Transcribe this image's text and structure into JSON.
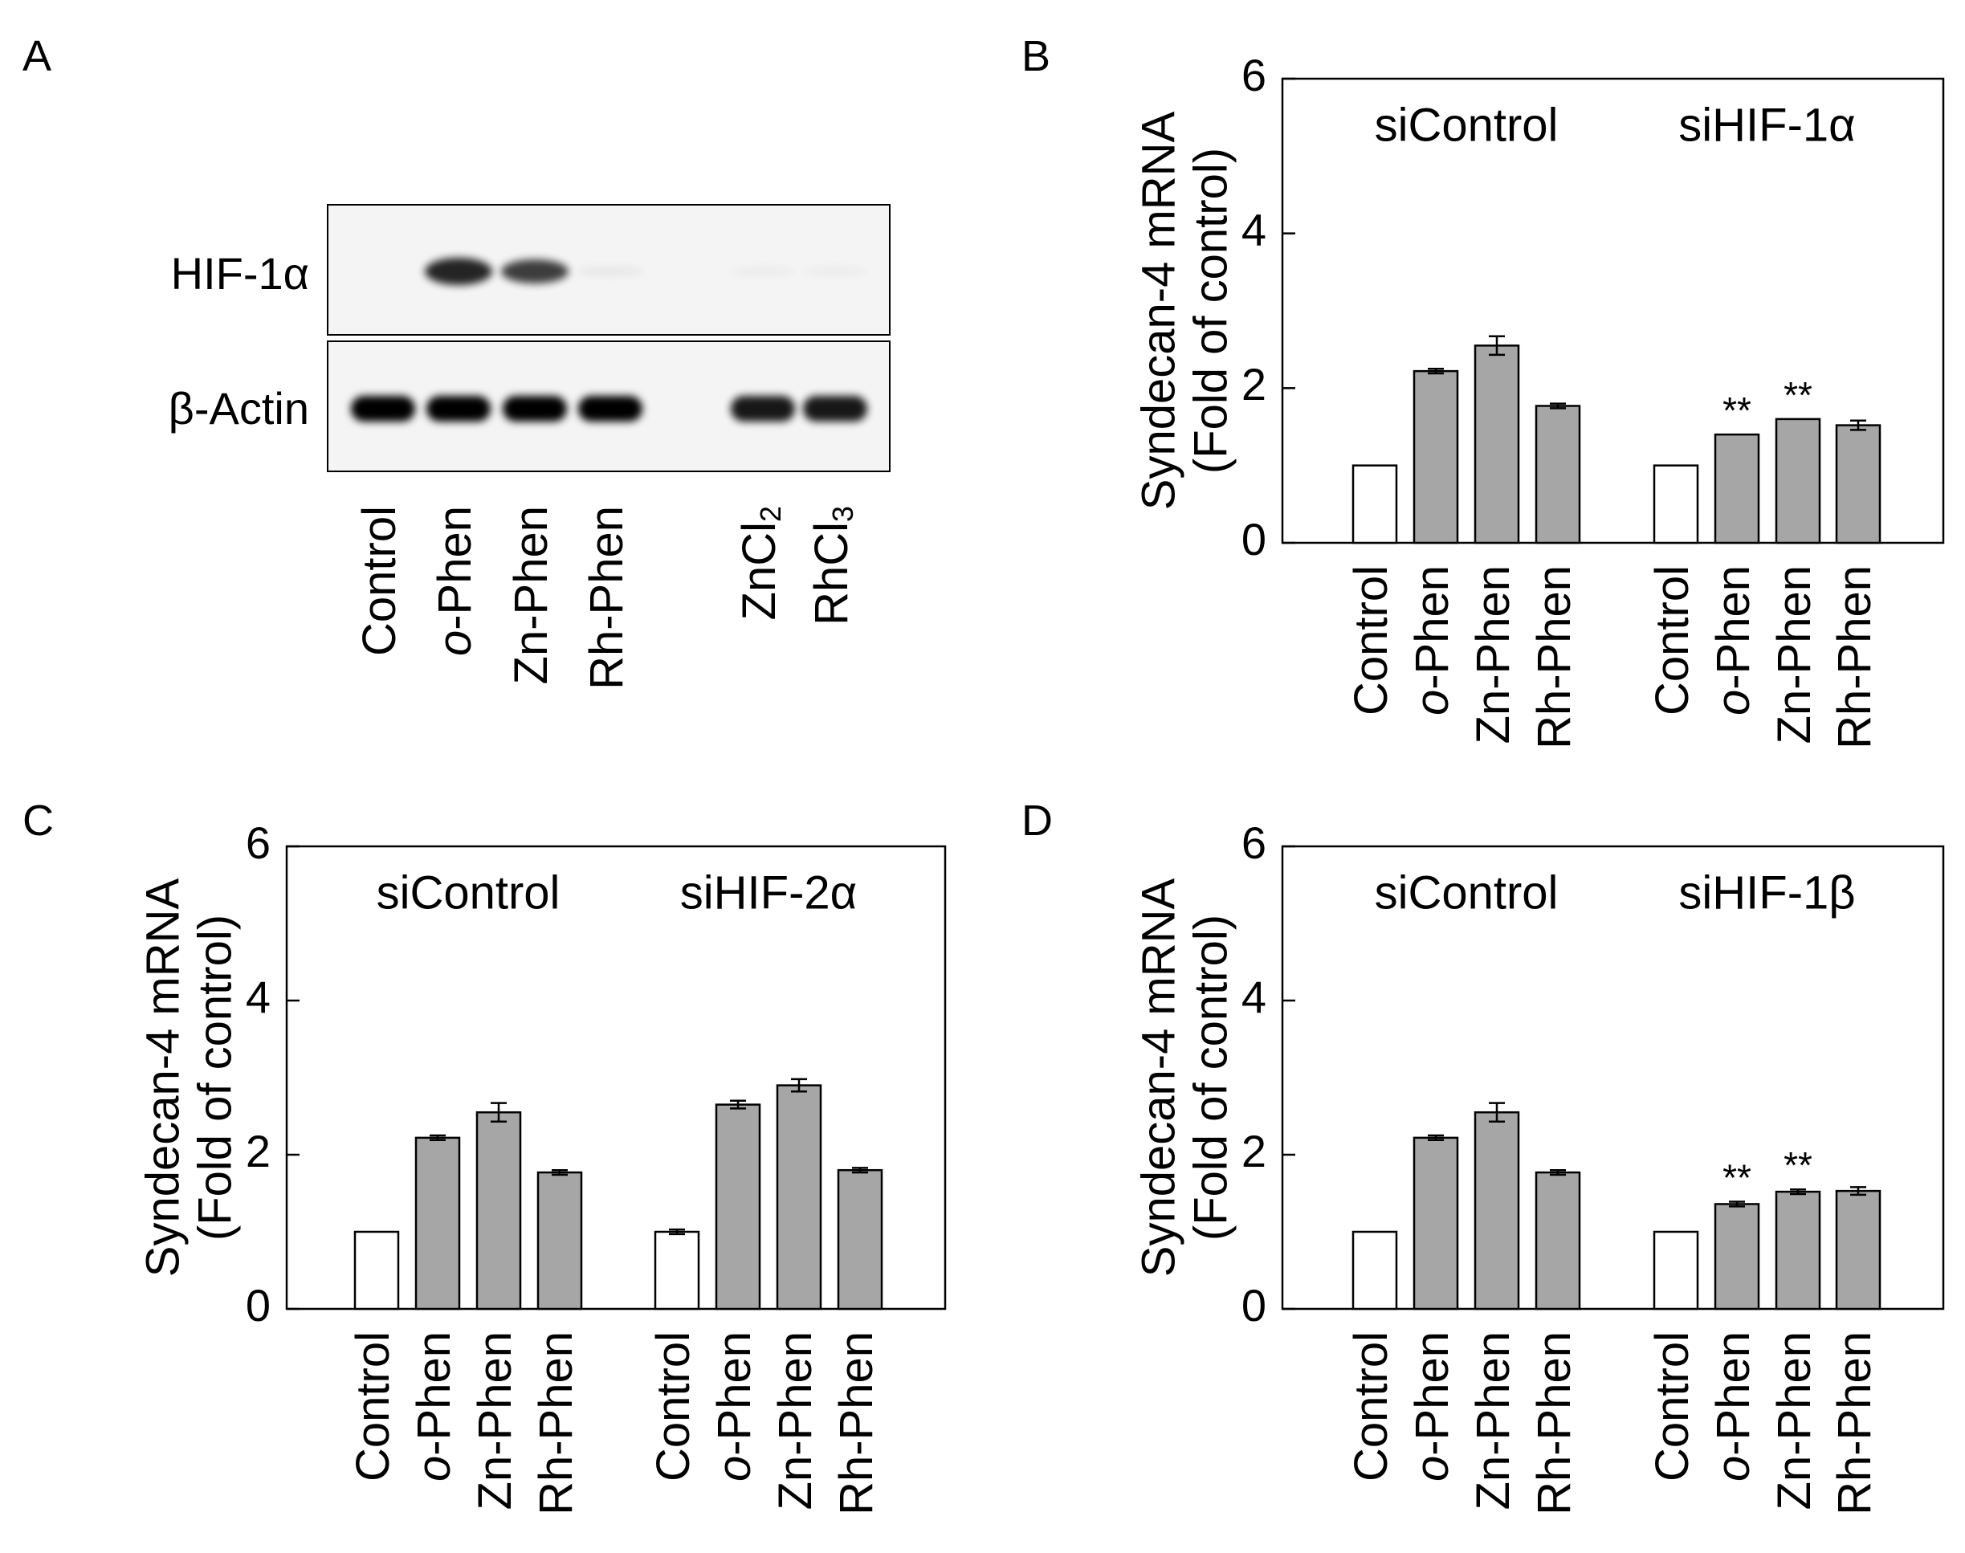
{
  "panels": {
    "A": {
      "letter": "A"
    },
    "B": {
      "letter": "B"
    },
    "C": {
      "letter": "C"
    },
    "D": {
      "letter": "D"
    }
  },
  "blot": {
    "rows": [
      {
        "label": "HIF-1α"
      },
      {
        "label": "β-Actin"
      }
    ],
    "lanes": [
      {
        "label": "Control",
        "italic_prefix": "",
        "sub": "",
        "hif_band": 0.0,
        "actin_band": 1.0
      },
      {
        "label": "-Phen",
        "italic_prefix": "o",
        "sub": "",
        "hif_band": 0.85,
        "actin_band": 1.0
      },
      {
        "label": "Zn-Phen",
        "italic_prefix": "",
        "sub": "",
        "hif_band": 0.75,
        "actin_band": 1.0
      },
      {
        "label": "Rh-Phen",
        "italic_prefix": "",
        "sub": "",
        "hif_band": 0.05,
        "actin_band": 1.0
      },
      {
        "label": "",
        "italic_prefix": "",
        "sub": "",
        "hif_band": 0.0,
        "actin_band": 0.0
      },
      {
        "label": "ZnCl",
        "italic_prefix": "",
        "sub": "2",
        "hif_band": 0.03,
        "actin_band": 0.9
      },
      {
        "label": "RhCl",
        "italic_prefix": "",
        "sub": "3",
        "hif_band": 0.03,
        "actin_band": 0.9
      }
    ]
  },
  "colors": {
    "treated_bar": "#a6a6a6",
    "control_bar": "#ffffff",
    "outline": "#000000"
  },
  "chart_data": [
    {
      "panel": "B",
      "type": "bar",
      "ylabel_line1": "Syndecan-4 mRNA",
      "ylabel_line2": "(Fold of control)",
      "ylim": [
        0,
        6
      ],
      "yticks": [
        "0",
        "2",
        "4",
        "6"
      ],
      "grid": false,
      "groups": [
        {
          "name": "siControl",
          "bars": [
            {
              "category": "Control",
              "italic_prefix": "",
              "value": 1.0,
              "error": 0.0,
              "sig": ""
            },
            {
              "category": "-Phen",
              "italic_prefix": "o",
              "value": 2.22,
              "error": 0.03,
              "sig": ""
            },
            {
              "category": "Zn-Phen",
              "italic_prefix": "",
              "value": 2.55,
              "error": 0.12,
              "sig": ""
            },
            {
              "category": "Rh-Phen",
              "italic_prefix": "",
              "value": 1.77,
              "error": 0.03,
              "sig": ""
            }
          ]
        },
        {
          "name": "siHIF-1α",
          "bars": [
            {
              "category": "Control",
              "italic_prefix": "",
              "value": 1.0,
              "error": 0.0,
              "sig": ""
            },
            {
              "category": "-Phen",
              "italic_prefix": "o",
              "value": 1.4,
              "error": 0.0,
              "sig": "**"
            },
            {
              "category": "Zn-Phen",
              "italic_prefix": "",
              "value": 1.6,
              "error": 0.0,
              "sig": "**"
            },
            {
              "category": "Rh-Phen",
              "italic_prefix": "",
              "value": 1.52,
              "error": 0.06,
              "sig": ""
            }
          ]
        }
      ]
    },
    {
      "panel": "C",
      "type": "bar",
      "ylabel_line1": "Syndecan-4 mRNA",
      "ylabel_line2": "(Fold of control)",
      "ylim": [
        0,
        6
      ],
      "yticks": [
        "0",
        "2",
        "4",
        "6"
      ],
      "grid": false,
      "groups": [
        {
          "name": "siControl",
          "bars": [
            {
              "category": "Control",
              "italic_prefix": "",
              "value": 1.0,
              "error": 0.0,
              "sig": ""
            },
            {
              "category": "-Phen",
              "italic_prefix": "o",
              "value": 2.22,
              "error": 0.03,
              "sig": ""
            },
            {
              "category": "Zn-Phen",
              "italic_prefix": "",
              "value": 2.55,
              "error": 0.12,
              "sig": ""
            },
            {
              "category": "Rh-Phen",
              "italic_prefix": "",
              "value": 1.77,
              "error": 0.03,
              "sig": ""
            }
          ]
        },
        {
          "name": "siHIF-2α",
          "bars": [
            {
              "category": "Control",
              "italic_prefix": "",
              "value": 1.0,
              "error": 0.03,
              "sig": ""
            },
            {
              "category": "-Phen",
              "italic_prefix": "o",
              "value": 2.65,
              "error": 0.05,
              "sig": ""
            },
            {
              "category": "Zn-Phen",
              "italic_prefix": "",
              "value": 2.9,
              "error": 0.08,
              "sig": ""
            },
            {
              "category": "Rh-Phen",
              "italic_prefix": "",
              "value": 1.8,
              "error": 0.03,
              "sig": ""
            }
          ]
        }
      ]
    },
    {
      "panel": "D",
      "type": "bar",
      "ylabel_line1": "Syndecan-4 mRNA",
      "ylabel_line2": "(Fold of control)",
      "ylim": [
        0,
        6
      ],
      "yticks": [
        "0",
        "2",
        "4",
        "6"
      ],
      "grid": false,
      "groups": [
        {
          "name": "siControl",
          "bars": [
            {
              "category": "Control",
              "italic_prefix": "",
              "value": 1.0,
              "error": 0.0,
              "sig": ""
            },
            {
              "category": "-Phen",
              "italic_prefix": "o",
              "value": 2.22,
              "error": 0.03,
              "sig": ""
            },
            {
              "category": "Zn-Phen",
              "italic_prefix": "",
              "value": 2.55,
              "error": 0.12,
              "sig": ""
            },
            {
              "category": "Rh-Phen",
              "italic_prefix": "",
              "value": 1.77,
              "error": 0.03,
              "sig": ""
            }
          ]
        },
        {
          "name": "siHIF-1β",
          "bars": [
            {
              "category": "Control",
              "italic_prefix": "",
              "value": 1.0,
              "error": 0.0,
              "sig": ""
            },
            {
              "category": "-Phen",
              "italic_prefix": "o",
              "value": 1.36,
              "error": 0.03,
              "sig": "**"
            },
            {
              "category": "Zn-Phen",
              "italic_prefix": "",
              "value": 1.52,
              "error": 0.03,
              "sig": "**"
            },
            {
              "category": "Rh-Phen",
              "italic_prefix": "",
              "value": 1.53,
              "error": 0.05,
              "sig": ""
            }
          ]
        }
      ]
    }
  ]
}
